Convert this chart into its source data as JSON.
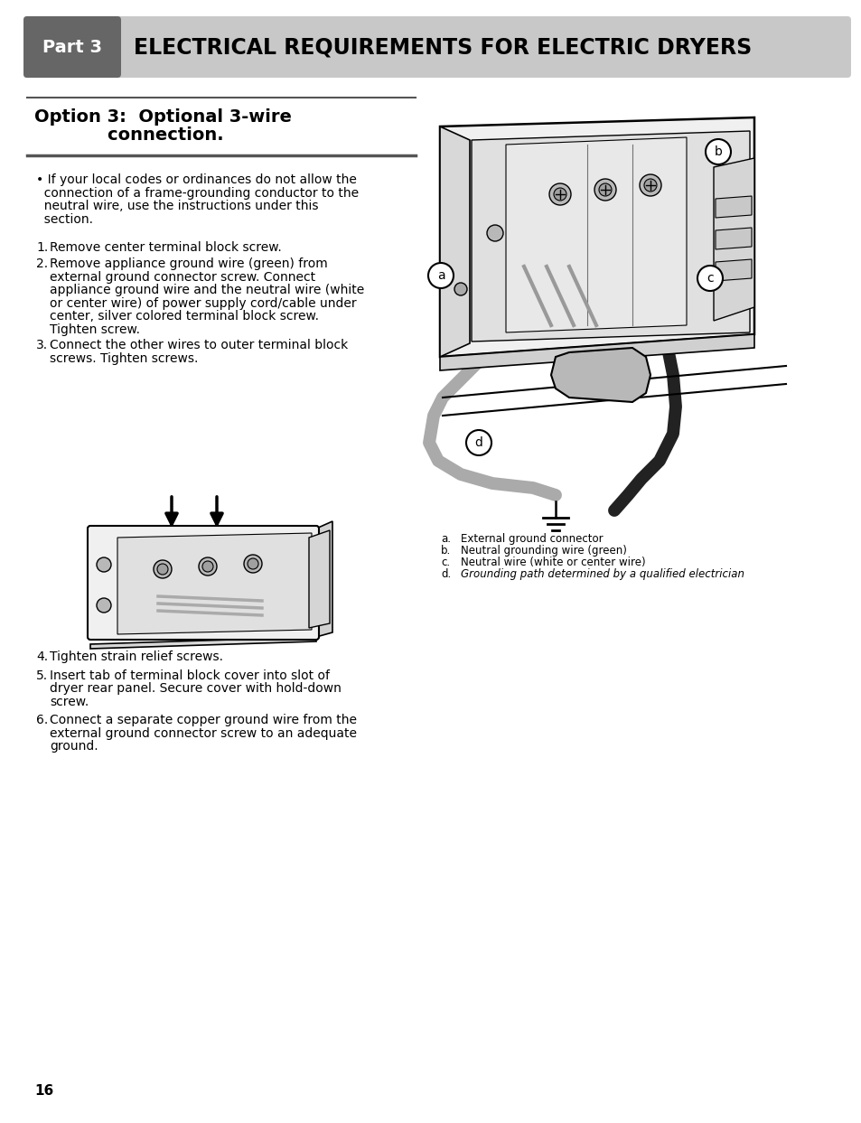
{
  "page_bg": "#ffffff",
  "header_bg": "#c8c8c8",
  "part_box_bg": "#666666",
  "part_box_text": "Part 3",
  "header_text": "ELECTRICAL REQUIREMENTS FOR ELECTRIC DRYERS",
  "option_title_line1": "Option 3:  Optional 3-wire",
  "option_title_line2": "            connection.",
  "bullet_lines": [
    "• If your local codes or ordinances do not allow the",
    "  connection of a frame-grounding conductor to the",
    "  neutral wire, use the instructions under this",
    "  section."
  ],
  "steps_1_3": [
    [
      "1.",
      "Remove center terminal block screw."
    ],
    [
      "2.",
      "Remove appliance ground wire (green) from\nexternal ground connector screw. Connect\nappliance ground wire and the neutral wire (white\nor center wire) of power supply cord/cable under\ncenter, silver colored terminal block screw.\nTighten screw."
    ],
    [
      "3.",
      "Connect the other wires to outer terminal block\nscrews. Tighten screws."
    ]
  ],
  "steps_4_6": [
    [
      "4.",
      "Tighten strain relief screws."
    ],
    [
      "5.",
      "Insert tab of terminal block cover into slot of\ndryer rear panel. Secure cover with hold-down\nscrew."
    ],
    [
      "6.",
      "Connect a separate copper ground wire from the\nexternal ground connector screw to an adequate\nground."
    ]
  ],
  "captions": [
    [
      "a.",
      "External ground connector"
    ],
    [
      "b.",
      "Neutral grounding wire (green)"
    ],
    [
      "c.",
      "Neutral wire (white or center wire)"
    ],
    [
      "d.",
      "Grounding path determined by a qualified electrician"
    ]
  ],
  "page_number": "16",
  "header_fontsize": 17,
  "part_fontsize": 14,
  "option_title_fontsize": 14,
  "body_fontsize": 10,
  "caption_fontsize": 8.5,
  "label_fontsize": 10
}
